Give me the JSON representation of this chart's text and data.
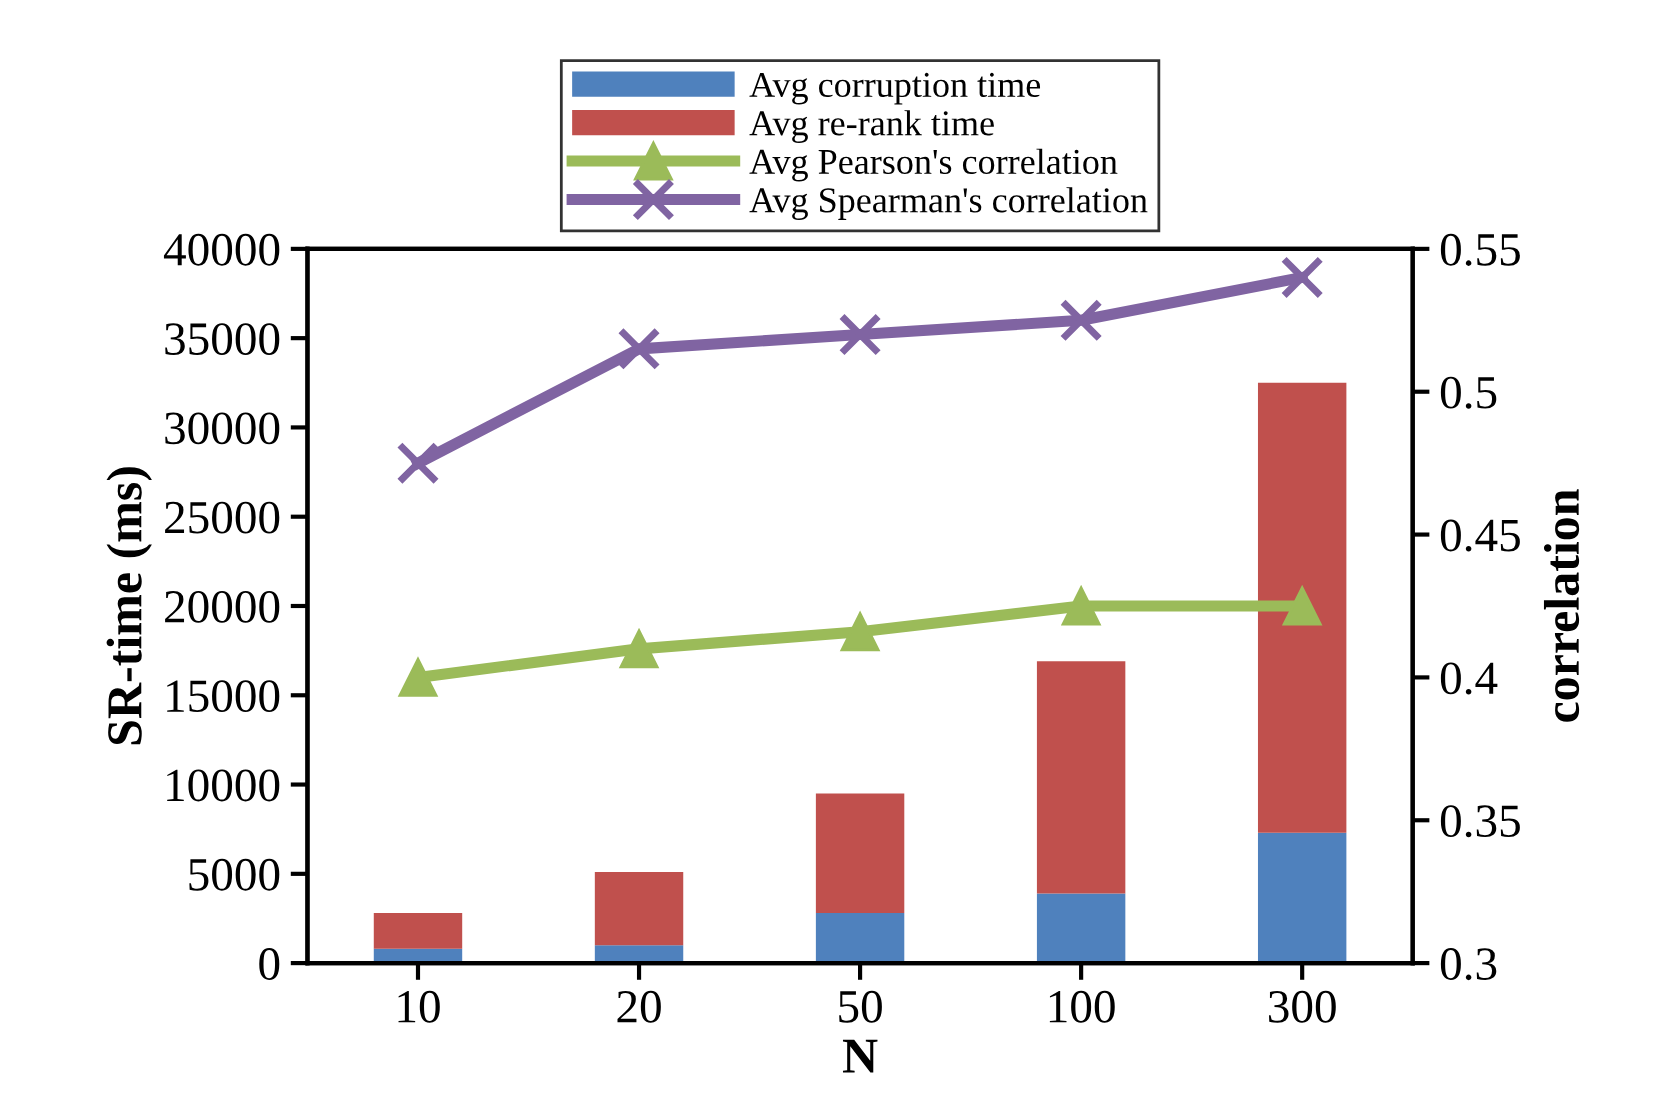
{
  "chart_data": {
    "type": "bar",
    "stacked": true,
    "xlabel": "N",
    "ylabel": "SR-time (ms)",
    "y2label": "correlation",
    "categories": [
      "10",
      "20",
      "50",
      "100",
      "300"
    ],
    "series": [
      {
        "name": "Avg corruption time",
        "color": "#4f81bd",
        "values": [
          800,
          1000,
          2800,
          3900,
          7300
        ]
      },
      {
        "name": "Avg re-rank time",
        "color": "#c0504d",
        "values": [
          2000,
          4100,
          6700,
          13000,
          25200
        ]
      },
      {
        "name": "Avg Pearson's correlation",
        "type": "line",
        "axis": "y2",
        "color": "#9bbb59",
        "marker": "triangle",
        "values": [
          0.4,
          0.41,
          0.416,
          0.425,
          0.425
        ]
      },
      {
        "name": "Avg Spearman's correlation",
        "type": "line",
        "axis": "y2",
        "color": "#8064a2",
        "marker": "cross",
        "values": [
          0.475,
          0.515,
          0.52,
          0.525,
          0.54
        ]
      }
    ],
    "ylim": [
      0,
      40000
    ],
    "yticks": [
      0,
      5000,
      10000,
      15000,
      20000,
      25000,
      30000,
      35000,
      40000
    ],
    "y2lim": [
      0.3,
      0.55
    ],
    "y2ticks": [
      0.3,
      0.35,
      0.4,
      0.45,
      0.5,
      0.55
    ],
    "legend": "top",
    "grid": false
  }
}
